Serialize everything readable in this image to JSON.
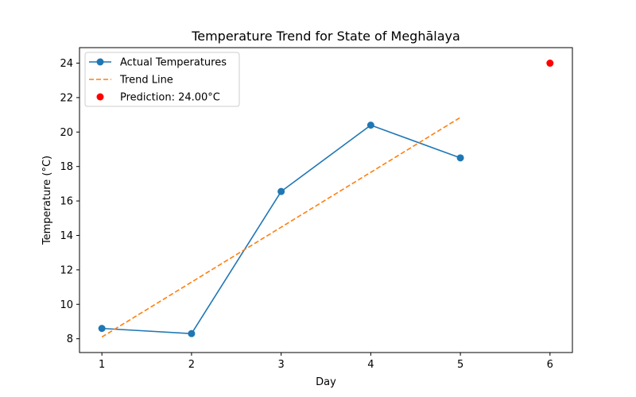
{
  "chart_data": {
    "type": "line",
    "title": "Temperature Trend for State of Meghālaya",
    "xlabel": "Day",
    "ylabel": "Temperature (°C)",
    "xlim": [
      0.75,
      6.25
    ],
    "ylim": [
      7.2,
      24.9
    ],
    "xticks": [
      1,
      2,
      3,
      4,
      5,
      6
    ],
    "yticks": [
      8,
      10,
      12,
      14,
      16,
      18,
      20,
      22,
      24
    ],
    "grid": false,
    "legend_position": "top-left",
    "series": [
      {
        "name": "Actual Temperatures",
        "kind": "line-marker",
        "color": "#1f77b4",
        "x": [
          1,
          2,
          3,
          4,
          5
        ],
        "y": [
          8.6,
          8.3,
          16.55,
          20.4,
          18.5
        ]
      },
      {
        "name": "Trend Line",
        "kind": "dashed-line",
        "color": "#ff7f0e",
        "x": [
          1,
          5
        ],
        "y": [
          8.1,
          20.85
        ]
      },
      {
        "name": "Prediction: 24.00°C",
        "kind": "scatter",
        "color": "#ff0000",
        "x": [
          6
        ],
        "y": [
          24.0
        ]
      }
    ]
  }
}
